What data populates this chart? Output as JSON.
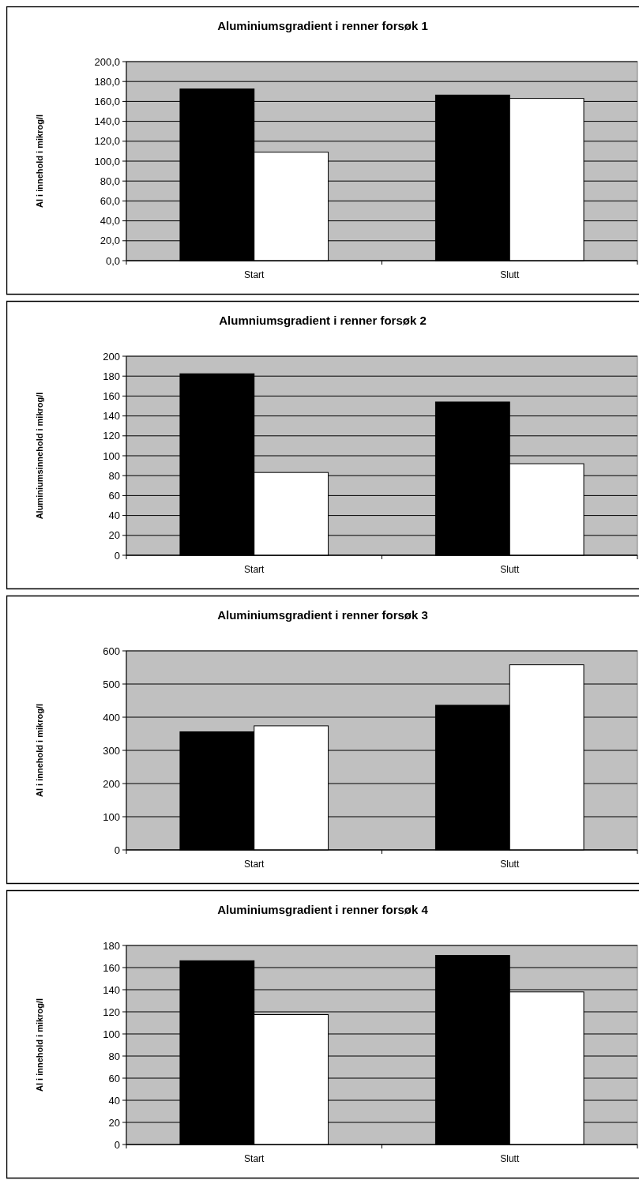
{
  "chart_data": [
    {
      "type": "bar",
      "title": "Aluminiumsgradient i renner forsøk 1",
      "ylabel": "Al i innehold i mikrog/l",
      "categories": [
        "Start",
        "Slutt"
      ],
      "series": [
        {
          "color": "#000000",
          "values": [
            172.5,
            166.4
          ]
        },
        {
          "color": "#ffffff",
          "values": [
            109,
            163
          ]
        }
      ],
      "ylim": [
        0,
        200
      ],
      "yticks": [
        {
          "value": 0,
          "label": "0,0"
        },
        {
          "value": 20,
          "label": "20,0"
        },
        {
          "value": 40,
          "label": "40,0"
        },
        {
          "value": 60,
          "label": "60,0"
        },
        {
          "value": 80,
          "label": "80,0"
        },
        {
          "value": 100,
          "label": "100,0"
        },
        {
          "value": 120,
          "label": "120,0"
        },
        {
          "value": 140,
          "label": "140,0"
        },
        {
          "value": 160,
          "label": "160,0"
        },
        {
          "value": 180,
          "label": "180,0"
        },
        {
          "value": 200,
          "label": "200,0"
        }
      ],
      "grid": "y"
    },
    {
      "type": "bar",
      "title": "Alumniumsgradient i renner forsøk 2",
      "ylabel": "Aluminiumsinnehold i mikrog/l",
      "categories": [
        "Start",
        "Slutt"
      ],
      "series": [
        {
          "color": "#000000",
          "values": [
            182.4,
            154
          ]
        },
        {
          "color": "#ffffff",
          "values": [
            83.2,
            92
          ]
        }
      ],
      "ylim": [
        0,
        200
      ],
      "yticks": [
        0,
        20,
        40,
        60,
        80,
        100,
        120,
        140,
        160,
        180,
        200
      ],
      "grid": "y"
    },
    {
      "type": "bar",
      "title": "Aluminiumsgradient i renner forsøk 3",
      "ylabel": "Al i innehold i mikrog/l",
      "categories": [
        "Start",
        "Slutt"
      ],
      "series": [
        {
          "color": "#000000",
          "values": [
            356,
            436
          ]
        },
        {
          "color": "#ffffff",
          "values": [
            374,
            558
          ]
        }
      ],
      "ylim": [
        0,
        600
      ],
      "yticks": [
        0,
        100,
        200,
        300,
        400,
        500,
        600
      ],
      "grid": "y"
    },
    {
      "type": "bar",
      "title": "Aluminiumsgradient i renner forsøk 4",
      "ylabel": "Al i innehold i mikrog/l",
      "categories": [
        "Start",
        "Slutt"
      ],
      "series": [
        {
          "color": "#000000",
          "values": [
            166.2,
            171
          ]
        },
        {
          "color": "#ffffff",
          "values": [
            117.5,
            138
          ]
        }
      ],
      "ylim": [
        0,
        180
      ],
      "yticks": [
        0,
        20,
        40,
        60,
        80,
        100,
        120,
        140,
        160,
        180
      ],
      "grid": "y"
    }
  ]
}
